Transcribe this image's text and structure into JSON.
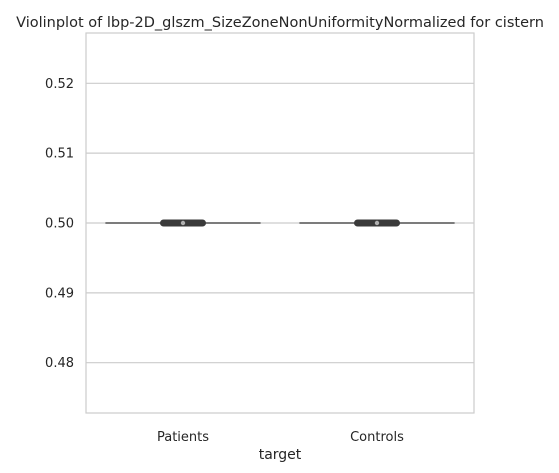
{
  "chart_data": {
    "type": "violin",
    "title": "Violinplot of lbp-2D_glszm_SizeZoneNonUniformityNormalized for cistern",
    "xlabel": "target",
    "ylabel": "",
    "categories": [
      "Patients",
      "Controls"
    ],
    "series": [
      {
        "category": "Patients",
        "values_center": 0.5,
        "iqr": [
          0.49996,
          0.50004
        ],
        "whiskers": [
          0.49999,
          0.50001
        ]
      },
      {
        "category": "Controls",
        "values_center": 0.5,
        "iqr": [
          0.49996,
          0.50004
        ],
        "whiskers": [
          0.49999,
          0.50001
        ]
      }
    ],
    "yticks": [
      0.48,
      0.49,
      0.5,
      0.51,
      0.52
    ],
    "ytick_labels": [
      "0.48",
      "0.49",
      "0.50",
      "0.51",
      "0.52"
    ],
    "ylim": [
      0.4728,
      0.5272
    ],
    "grid": "horizontal",
    "colors": {
      "violin_line": "#555555",
      "box": "#3a3a3a",
      "grid": "#cccccc",
      "frame": "#cccccc"
    }
  }
}
